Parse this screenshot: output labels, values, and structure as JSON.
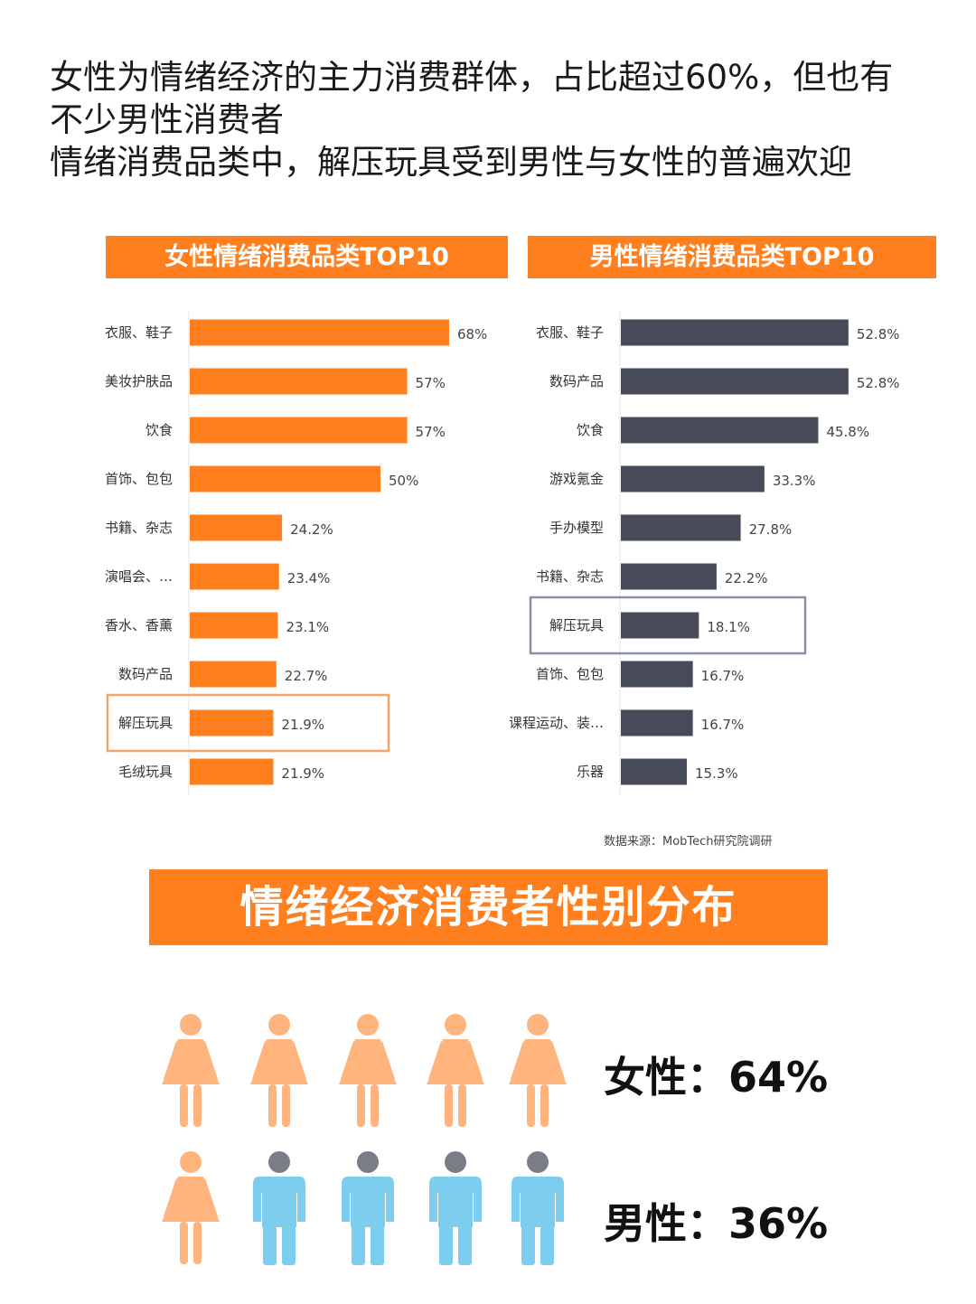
{
  "headline": {
    "line1": "女性为情绪经济的主力消费群体，占比超过60%，但也有",
    "line2": "不少男性消费者",
    "line3": "情绪消费品类中，解压玩具受到男性与女性的普遍欢迎"
  },
  "source": "数据来源：MobTech研究院调研",
  "colors": {
    "orange": "#ff7f1e",
    "dark": "#474a59",
    "female_icon": "#ffb47e",
    "male_icon": "#7ccdee",
    "male_head": "#7a7d88",
    "highlight_female": "#f2a46a",
    "highlight_male": "#8a8fa8"
  },
  "chart_data": [
    {
      "type": "bar",
      "orientation": "horizontal",
      "title": "女性情绪消费品类TOP10",
      "categories": [
        "衣服、鞋子",
        "美妆护肤品",
        "饮食",
        "首饰、包包",
        "书籍、杂志",
        "演唱会、…",
        "香水、香薰",
        "数码产品",
        "解压玩具",
        "毛绒玩具"
      ],
      "values": [
        68,
        57,
        57,
        50,
        24.2,
        23.4,
        23.1,
        22.7,
        21.9,
        21.9
      ],
      "value_labels": [
        "68%",
        "57%",
        "57%",
        "50%",
        "24.2%",
        "23.4%",
        "23.1%",
        "22.7%",
        "21.9%",
        "21.9%"
      ],
      "highlight": "解压玩具",
      "color": "#ff7f1e"
    },
    {
      "type": "bar",
      "orientation": "horizontal",
      "title": "男性情绪消费品类TOP10",
      "categories": [
        "衣服、鞋子",
        "数码产品",
        "饮食",
        "游戏氪金",
        "手办模型",
        "书籍、杂志",
        "解压玩具",
        "首饰、包包",
        "课程运动、装…",
        "乐器"
      ],
      "values": [
        52.8,
        52.8,
        45.8,
        33.3,
        27.8,
        22.2,
        18.1,
        16.7,
        16.7,
        15.3
      ],
      "value_labels": [
        "52.8%",
        "52.8%",
        "45.8%",
        "33.3%",
        "27.8%",
        "22.2%",
        "18.1%",
        "16.7%",
        "16.7%",
        "15.3%"
      ],
      "highlight": "解压玩具",
      "color": "#474a59"
    },
    {
      "type": "pictogram",
      "title": "情绪经济消费者性别分布",
      "categories": [
        "女性",
        "男性"
      ],
      "values": [
        64,
        36
      ],
      "labels": [
        "女性：64%",
        "男性：36%"
      ]
    }
  ]
}
